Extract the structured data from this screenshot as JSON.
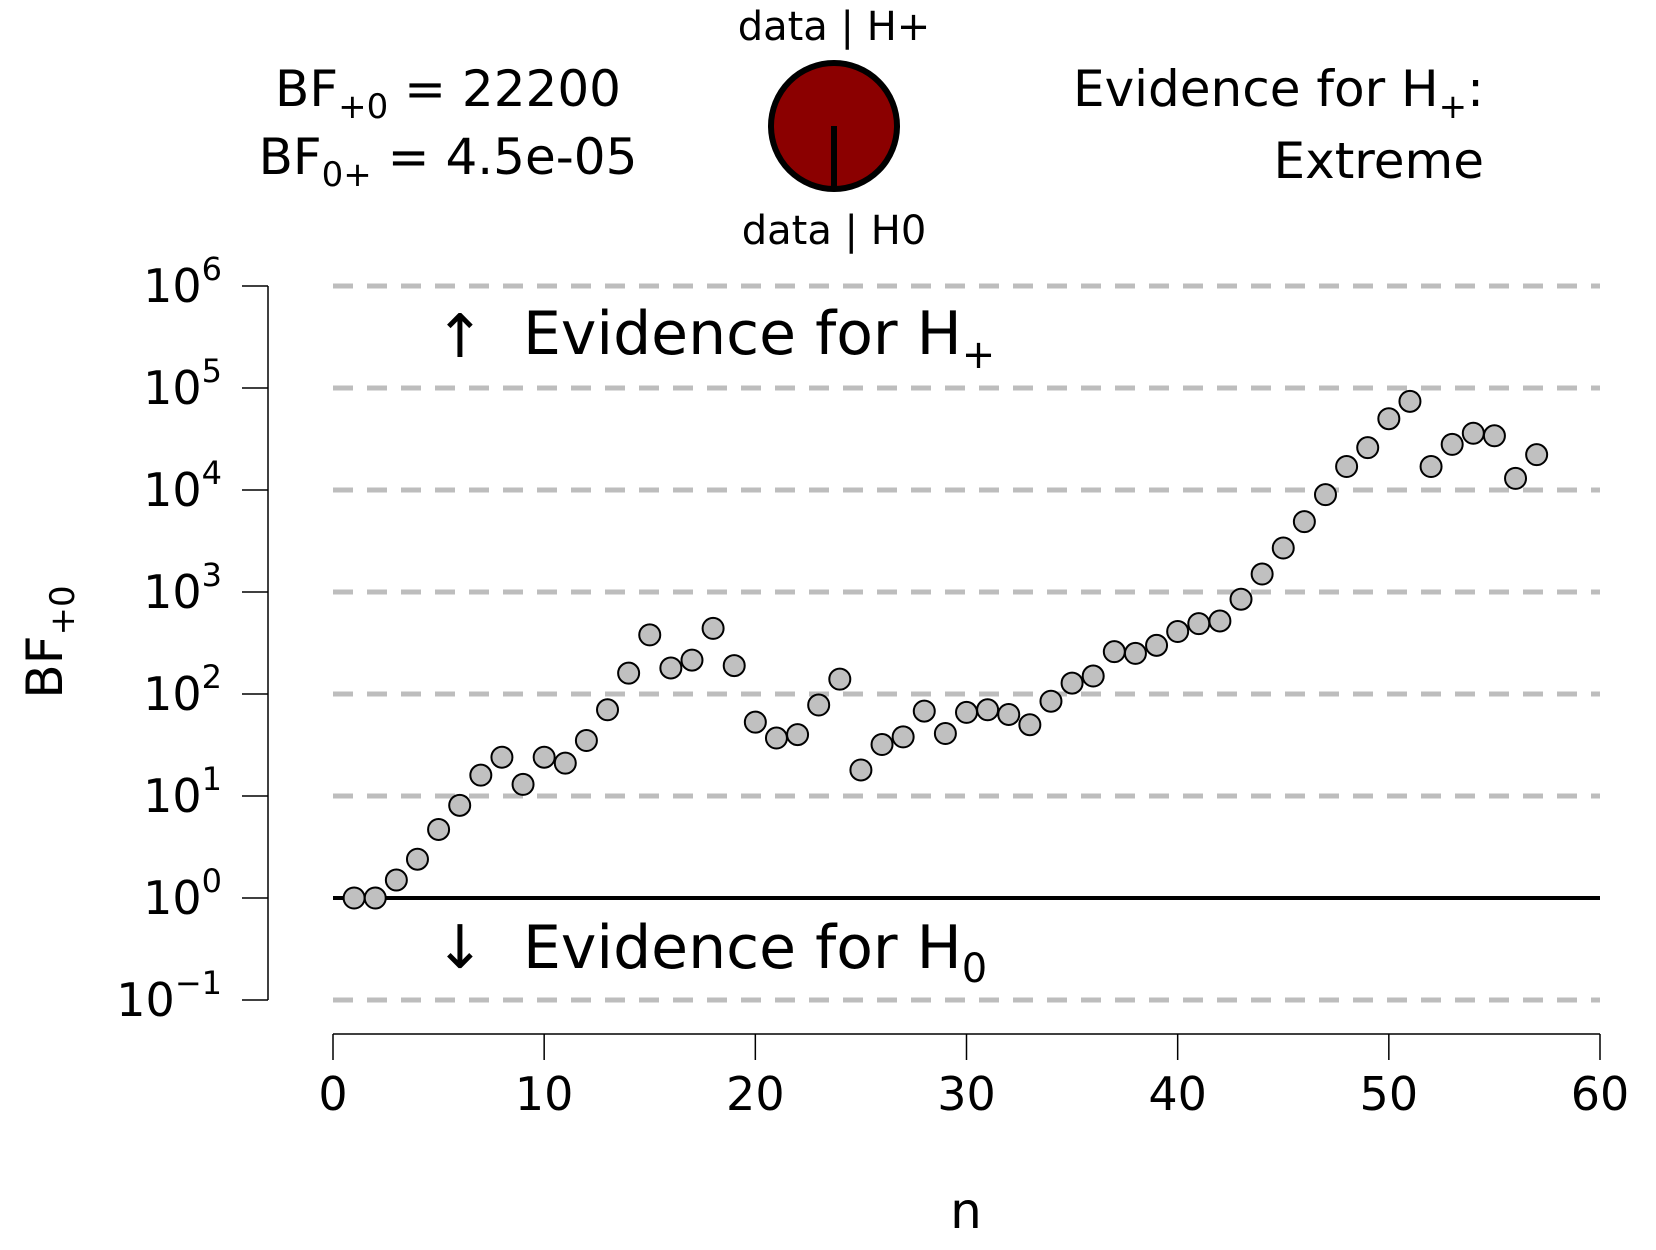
{
  "header": {
    "bf_plus0": {
      "base": "BF",
      "sub": "+0",
      "rest": " = 22200"
    },
    "bf_0plus": {
      "base": "BF",
      "sub": "0+",
      "rest": " = 4.5e-05"
    },
    "pie_top_label": "data | H+",
    "pie_bottom_label": "data | H0",
    "evidence_line1": {
      "base": "Evidence for H",
      "sub": "+",
      "rest": ":"
    },
    "evidence_line2": "Extreme"
  },
  "annotations": {
    "up_arrow": "↑",
    "up_text": {
      "base": "Evidence for H",
      "sub": "+"
    },
    "down_arrow": "↓",
    "down_text": {
      "base": "Evidence for H",
      "sub": "0"
    }
  },
  "colors": {
    "pie_fill": "#8b0000",
    "point_fill": "#c0c0c0",
    "gridline": "#bdbdbd",
    "axis": "#000000"
  },
  "chart_data": {
    "type": "scatter",
    "xlabel": "n",
    "ylabel": {
      "base": "BF",
      "sub": "+0"
    },
    "xlim": [
      0,
      60
    ],
    "xticks": [
      0,
      10,
      20,
      30,
      40,
      50,
      60
    ],
    "ylog": true,
    "ylim": [
      0.1,
      1000000
    ],
    "yticks": [
      {
        "value": 0.1,
        "label_base": "10",
        "label_exp": "−1"
      },
      {
        "value": 1,
        "label_base": "10",
        "label_exp": "0"
      },
      {
        "value": 10,
        "label_base": "10",
        "label_exp": "1"
      },
      {
        "value": 100,
        "label_base": "10",
        "label_exp": "2"
      },
      {
        "value": 1000,
        "label_base": "10",
        "label_exp": "3"
      },
      {
        "value": 10000,
        "label_base": "10",
        "label_exp": "4"
      },
      {
        "value": 100000,
        "label_base": "10",
        "label_exp": "5"
      },
      {
        "value": 1000000,
        "label_base": "10",
        "label_exp": "6"
      }
    ],
    "dashed_gridlines": [
      0.1,
      10,
      100,
      1000,
      10000,
      100000,
      1000000
    ],
    "reference_line": 1,
    "points": [
      {
        "x": 1,
        "y": 1.0
      },
      {
        "x": 2,
        "y": 1.0
      },
      {
        "x": 3,
        "y": 1.5
      },
      {
        "x": 4,
        "y": 2.4
      },
      {
        "x": 5,
        "y": 4.7
      },
      {
        "x": 6,
        "y": 8.1
      },
      {
        "x": 7,
        "y": 16
      },
      {
        "x": 8,
        "y": 24
      },
      {
        "x": 9,
        "y": 13
      },
      {
        "x": 10,
        "y": 24
      },
      {
        "x": 11,
        "y": 21
      },
      {
        "x": 12,
        "y": 35
      },
      {
        "x": 13,
        "y": 70
      },
      {
        "x": 14,
        "y": 160
      },
      {
        "x": 15,
        "y": 380
      },
      {
        "x": 16,
        "y": 180
      },
      {
        "x": 17,
        "y": 215
      },
      {
        "x": 18,
        "y": 440
      },
      {
        "x": 19,
        "y": 190
      },
      {
        "x": 20,
        "y": 53
      },
      {
        "x": 21,
        "y": 37
      },
      {
        "x": 22,
        "y": 40
      },
      {
        "x": 23,
        "y": 78
      },
      {
        "x": 24,
        "y": 140
      },
      {
        "x": 25,
        "y": 18
      },
      {
        "x": 26,
        "y": 32
      },
      {
        "x": 27,
        "y": 38
      },
      {
        "x": 28,
        "y": 68
      },
      {
        "x": 29,
        "y": 41
      },
      {
        "x": 30,
        "y": 66
      },
      {
        "x": 31,
        "y": 70
      },
      {
        "x": 32,
        "y": 63
      },
      {
        "x": 33,
        "y": 50
      },
      {
        "x": 34,
        "y": 85
      },
      {
        "x": 35,
        "y": 128
      },
      {
        "x": 36,
        "y": 150
      },
      {
        "x": 37,
        "y": 260
      },
      {
        "x": 38,
        "y": 250
      },
      {
        "x": 39,
        "y": 300
      },
      {
        "x": 40,
        "y": 410
      },
      {
        "x": 41,
        "y": 490
      },
      {
        "x": 42,
        "y": 520
      },
      {
        "x": 43,
        "y": 850
      },
      {
        "x": 44,
        "y": 1500
      },
      {
        "x": 45,
        "y": 2700
      },
      {
        "x": 46,
        "y": 4900
      },
      {
        "x": 47,
        "y": 9000
      },
      {
        "x": 48,
        "y": 17000
      },
      {
        "x": 49,
        "y": 26000
      },
      {
        "x": 50,
        "y": 50000
      },
      {
        "x": 51,
        "y": 74000
      },
      {
        "x": 52,
        "y": 17000
      },
      {
        "x": 53,
        "y": 28000
      },
      {
        "x": 54,
        "y": 36000
      },
      {
        "x": 55,
        "y": 34000
      },
      {
        "x": 56,
        "y": 13000
      },
      {
        "x": 57,
        "y": 22200
      }
    ]
  }
}
